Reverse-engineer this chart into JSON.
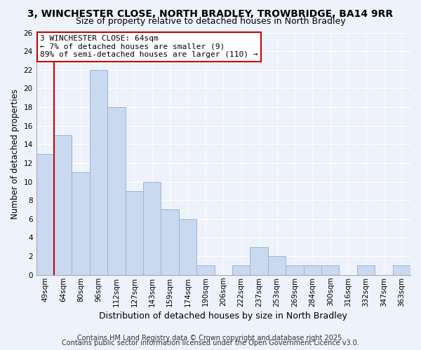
{
  "title": "3, WINCHESTER CLOSE, NORTH BRADLEY, TROWBRIDGE, BA14 9RR",
  "subtitle": "Size of property relative to detached houses in North Bradley",
  "xlabel": "Distribution of detached houses by size in North Bradley",
  "ylabel": "Number of detached properties",
  "categories": [
    "49sqm",
    "64sqm",
    "80sqm",
    "96sqm",
    "112sqm",
    "127sqm",
    "143sqm",
    "159sqm",
    "174sqm",
    "190sqm",
    "206sqm",
    "222sqm",
    "237sqm",
    "253sqm",
    "269sqm",
    "284sqm",
    "300sqm",
    "316sqm",
    "332sqm",
    "347sqm",
    "363sqm"
  ],
  "values": [
    13,
    15,
    11,
    22,
    18,
    9,
    10,
    7,
    6,
    1,
    0,
    1,
    3,
    2,
    1,
    1,
    1,
    0,
    1,
    0,
    1
  ],
  "bar_color": "#c9d9f0",
  "bar_edge_color": "#9ab5d8",
  "vline_color": "#cc0000",
  "ylim": [
    0,
    26
  ],
  "yticks": [
    0,
    2,
    4,
    6,
    8,
    10,
    12,
    14,
    16,
    18,
    20,
    22,
    24,
    26
  ],
  "annotation_title": "3 WINCHESTER CLOSE: 64sqm",
  "annotation_line1": "← 7% of detached houses are smaller (9)",
  "annotation_line2": "89% of semi-detached houses are larger (110) →",
  "annotation_box_color": "#ffffff",
  "annotation_box_edge": "#cc0000",
  "footer1": "Contains HM Land Registry data © Crown copyright and database right 2025.",
  "footer2": "Contains public sector information licensed under the Open Government Licence v3.0.",
  "background_color": "#eef2fb",
  "plot_background": "#eef2fb",
  "grid_color": "#ffffff",
  "title_fontsize": 10,
  "subtitle_fontsize": 9,
  "xlabel_fontsize": 9,
  "ylabel_fontsize": 8.5,
  "tick_fontsize": 7.5,
  "footer_fontsize": 7,
  "annotation_fontsize": 8
}
